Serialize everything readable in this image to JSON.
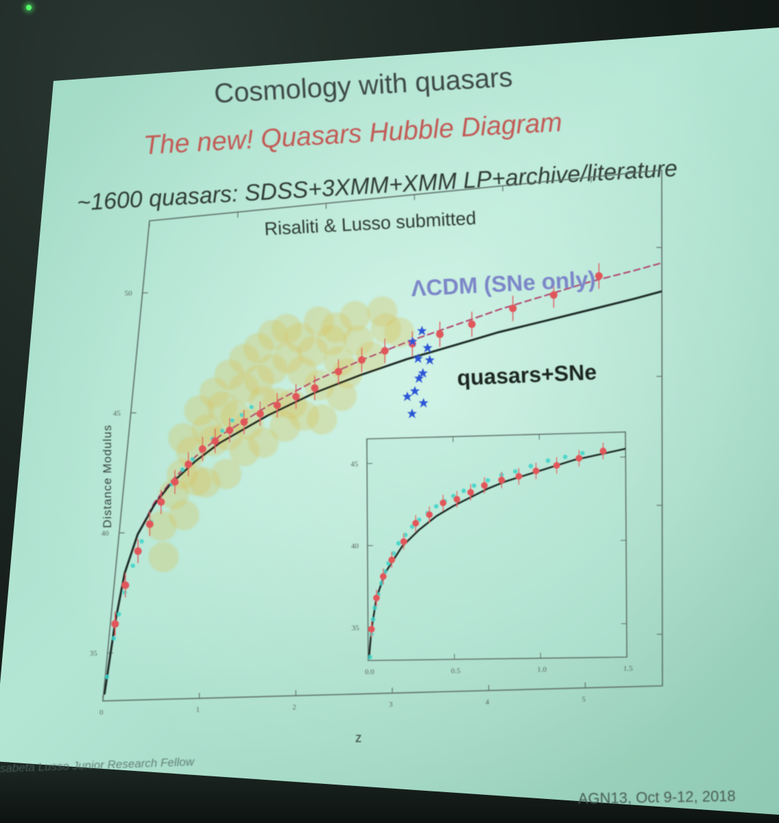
{
  "slide": {
    "title": "Cosmology with quasars",
    "subtitle": "The new! Quasars Hubble Diagram",
    "sample_line": "~1600 quasars: SDSS+3XMM+XMM LP+archive/literature",
    "citation": "Risaliti & Lusso submitted",
    "footer_left": "sabeta Lusso Junior Research Fellow",
    "footer_right": "AGN13, Oct 9-12, 2018",
    "colors": {
      "title": "#3e4a47",
      "subtitle": "#c25a55",
      "lcdm_label": "#7b86c8",
      "qso_points": "#d8c15a",
      "sne_points": "#3ad3c8",
      "binned_points": "#e0575a",
      "gamma_ray_bursts": "#2b55d6",
      "fit_line": "#1f2a27",
      "lcdm_line": "#b0456e"
    }
  },
  "chart_data": [
    {
      "type": "scatter",
      "ylabel": "Distance Modulus",
      "xlabel": "z",
      "xlim": [
        0,
        5.8
      ],
      "ylim": [
        33,
        53
      ],
      "x_ticks": [
        "0",
        "1",
        "2",
        "3",
        "4",
        "5"
      ],
      "y_ticks": [
        "35",
        "40",
        "45",
        "50"
      ],
      "annotations": [
        "ΛCDM (SNe only)",
        "quasars+SNe"
      ],
      "series": [
        {
          "style": "scatter",
          "color": "#d8c15a",
          "x": [
            0.45,
            0.55,
            0.62,
            0.7,
            0.78,
            0.85,
            0.93,
            1.0,
            1.08,
            1.15,
            1.22,
            1.3,
            1.38,
            1.45,
            1.52,
            1.6,
            1.68,
            1.76,
            1.85,
            1.95,
            2.05,
            2.15,
            2.25,
            2.35,
            2.45,
            2.6,
            2.75,
            0.6,
            0.75,
            0.9,
            1.05,
            1.2,
            1.35,
            1.5,
            1.65,
            1.8,
            2.0,
            2.2,
            2.4,
            2.7,
            2.9,
            0.5,
            0.68,
            0.88,
            1.1,
            1.28,
            1.48,
            1.7,
            1.9,
            2.1,
            2.3
          ],
          "y": [
            40.2,
            41.5,
            42.3,
            43.2,
            42.0,
            44.1,
            43.6,
            45.0,
            43.8,
            44.6,
            45.7,
            44.2,
            46.0,
            45.1,
            46.4,
            45.0,
            46.8,
            44.9,
            46.2,
            47.0,
            45.6,
            47.4,
            46.5,
            46.0,
            47.3,
            46.6,
            47.7,
            43.8,
            44.9,
            45.6,
            46.3,
            46.9,
            47.3,
            47.8,
            48.0,
            47.6,
            48.2,
            47.9,
            48.3,
            48.4,
            47.5,
            38.9,
            40.6,
            41.9,
            42.2,
            43.1,
            43.4,
            44.0,
            44.4,
            44.2,
            45.1
          ]
        },
        {
          "style": "scatter",
          "color": "#3ad3c8",
          "x": [
            0.02,
            0.05,
            0.08,
            0.12,
            0.18,
            0.25,
            0.33,
            0.42,
            0.52,
            0.62,
            0.72,
            0.82,
            0.92,
            1.02,
            1.12,
            1.22,
            1.32
          ],
          "y": [
            34.0,
            35.6,
            36.6,
            37.5,
            38.6,
            39.6,
            40.4,
            41.2,
            41.9,
            42.5,
            42.9,
            43.3,
            43.7,
            44.0,
            44.4,
            44.6,
            44.9
          ]
        },
        {
          "style": "errorbar",
          "color": "#e0575a",
          "x": [
            0.05,
            0.12,
            0.22,
            0.32,
            0.42,
            0.55,
            0.68,
            0.82,
            0.95,
            1.1,
            1.25,
            1.42,
            1.6,
            1.8,
            2.0,
            2.25,
            2.5,
            2.75,
            3.05,
            3.35,
            3.7,
            4.15,
            4.6,
            5.1
          ],
          "y": [
            36.2,
            37.8,
            39.2,
            40.3,
            41.2,
            42.0,
            42.7,
            43.3,
            43.6,
            44.0,
            44.3,
            44.6,
            44.9,
            45.2,
            45.5,
            46.1,
            46.5,
            46.8,
            47.0,
            47.3,
            47.6,
            48.1,
            48.5,
            49.1
          ]
        },
        {
          "style": "scatter",
          "color": "#2b55d6",
          "x": [
            3.05,
            3.12,
            3.18,
            3.1,
            3.22,
            3.15,
            3.08,
            3.25,
            3.02,
            3.2,
            3.14
          ],
          "y": [
            47.1,
            46.4,
            45.8,
            45.1,
            46.8,
            47.5,
            44.2,
            46.3,
            44.9,
            44.6,
            45.6
          ]
        },
        {
          "style": "line",
          "color": "#b0456e",
          "dash": "dashed",
          "x": [
            0.01,
            0.05,
            0.1,
            0.2,
            0.35,
            0.5,
            0.75,
            1.0,
            1.5,
            2.0,
            2.5,
            3.0,
            3.5,
            4.0,
            4.5,
            5.0,
            5.5,
            5.8
          ],
          "y": [
            33.3,
            36.3,
            38.3,
            39.9,
            41.2,
            42.0,
            43.0,
            43.8,
            44.9,
            45.8,
            46.5,
            47.1,
            47.6,
            48.1,
            48.5,
            48.9,
            49.2,
            49.4
          ]
        },
        {
          "style": "line",
          "color": "#1f2a27",
          "dash": "solid",
          "x": [
            0.01,
            0.05,
            0.1,
            0.2,
            0.35,
            0.5,
            0.75,
            1.0,
            1.5,
            2.0,
            2.5,
            3.0,
            3.5,
            4.0,
            4.5,
            5.0,
            5.5,
            5.8
          ],
          "y": [
            33.3,
            36.3,
            38.3,
            39.9,
            41.1,
            41.9,
            42.8,
            43.5,
            44.5,
            45.3,
            45.9,
            46.4,
            46.8,
            47.2,
            47.5,
            47.8,
            48.1,
            48.3
          ]
        }
      ]
    },
    {
      "type": "scatter",
      "xlim": [
        0,
        1.5
      ],
      "ylim": [
        33,
        46.5
      ],
      "x_ticks": [
        "0.0",
        "0.5",
        "1.0",
        "1.5"
      ],
      "y_ticks": [
        "35",
        "40",
        "45"
      ],
      "series": [
        {
          "style": "scatter",
          "color": "#3ad3c8",
          "x": [
            0.01,
            0.02,
            0.03,
            0.04,
            0.06,
            0.08,
            0.1,
            0.12,
            0.15,
            0.18,
            0.22,
            0.26,
            0.3,
            0.35,
            0.4,
            0.45,
            0.5,
            0.56,
            0.62,
            0.7,
            0.78,
            0.86,
            0.95,
            1.05,
            1.15,
            1.25
          ],
          "y": [
            33.2,
            34.6,
            35.5,
            36.2,
            37.0,
            37.7,
            38.4,
            38.9,
            39.5,
            40.1,
            40.6,
            41.1,
            41.5,
            41.9,
            42.3,
            42.6,
            42.9,
            43.2,
            43.5,
            43.8,
            44.1,
            44.3,
            44.6,
            44.9,
            45.1,
            45.3
          ]
        },
        {
          "style": "errorbar",
          "color": "#e0575a",
          "x": [
            0.02,
            0.05,
            0.09,
            0.14,
            0.21,
            0.28,
            0.36,
            0.44,
            0.52,
            0.6,
            0.68,
            0.78,
            0.88,
            0.98,
            1.1,
            1.23,
            1.37
          ],
          "y": [
            34.9,
            36.8,
            38.1,
            39.1,
            40.2,
            41.3,
            41.8,
            42.5,
            42.7,
            43.1,
            43.5,
            43.8,
            44.0,
            44.3,
            44.6,
            45.0,
            45.4
          ]
        },
        {
          "style": "line",
          "color": "#1f2a27",
          "x": [
            0.005,
            0.02,
            0.05,
            0.1,
            0.2,
            0.3,
            0.4,
            0.5,
            0.6,
            0.7,
            0.8,
            0.9,
            1.0,
            1.1,
            1.2,
            1.3,
            1.4,
            1.5
          ],
          "y": [
            33.2,
            34.9,
            36.8,
            38.3,
            39.9,
            40.9,
            41.7,
            42.3,
            42.8,
            43.3,
            43.7,
            44.0,
            44.3,
            44.6,
            44.9,
            45.1,
            45.3,
            45.5
          ]
        }
      ]
    }
  ]
}
